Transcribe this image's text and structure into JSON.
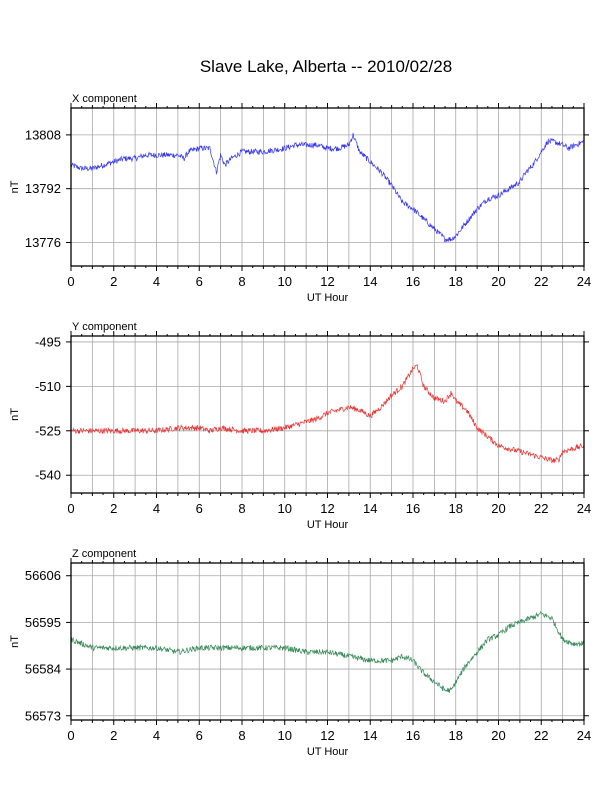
{
  "title": "Slave Lake, Alberta -- 2010/02/28",
  "chart_data": [
    {
      "type": "line",
      "panel_label": "X component",
      "xlabel": "UT Hour",
      "ylabel": "nT",
      "xlim": [
        0,
        24
      ],
      "ylim": [
        13769,
        13816
      ],
      "xticks": [
        0,
        2,
        4,
        6,
        8,
        10,
        12,
        14,
        16,
        18,
        20,
        22,
        24
      ],
      "yticks": [
        13776,
        13792,
        13808
      ],
      "grid": true,
      "color": "#3333ee",
      "series": [
        {
          "x": [
            0,
            0.5,
            1,
            1.5,
            2,
            2.5,
            3,
            3.5,
            4,
            4.5,
            5,
            5.3,
            5.5,
            6,
            6.5,
            6.8,
            7,
            7.2,
            7.5,
            8,
            9,
            10,
            10.5,
            11,
            11.5,
            12,
            12.5,
            13,
            13.2,
            13.5,
            14,
            14.5,
            15,
            15.5,
            16,
            16.5,
            17,
            17.5,
            17.8,
            18,
            18.5,
            19,
            19.5,
            20,
            20.5,
            21,
            21.3,
            21.6,
            22,
            22.3,
            22.6,
            23,
            23.3,
            23.6,
            24
          ],
          "values": [
            13799,
            13798,
            13798,
            13799,
            13800,
            13801,
            13801,
            13802,
            13802,
            13802,
            13802,
            13801,
            13803,
            13804,
            13804,
            13797,
            13802,
            13799,
            13801,
            13803,
            13803,
            13804,
            13805,
            13805,
            13805,
            13804,
            13804,
            13805,
            13808,
            13803,
            13800,
            13797,
            13793,
            13788,
            13786,
            13783,
            13780,
            13777,
            13777,
            13778,
            13782,
            13786,
            13789,
            13790,
            13792,
            13794,
            13797,
            13799,
            13803,
            13806,
            13806,
            13805,
            13804,
            13805,
            13806
          ]
        }
      ]
    },
    {
      "type": "line",
      "panel_label": "Y component",
      "xlabel": "UT Hour",
      "ylabel": "nT",
      "xlim": [
        0,
        24
      ],
      "ylim": [
        -546,
        -493
      ],
      "xticks": [
        0,
        2,
        4,
        6,
        8,
        10,
        12,
        14,
        16,
        18,
        20,
        22,
        24
      ],
      "yticks": [
        -540,
        -525,
        -510,
        -495
      ],
      "grid": true,
      "color": "#e83333",
      "series": [
        {
          "x": [
            0,
            1,
            2,
            3,
            4,
            5,
            6,
            6.5,
            7,
            8,
            9,
            10,
            11,
            11.5,
            12,
            12.5,
            13,
            13.5,
            14,
            14.5,
            15,
            15.5,
            16,
            16.2,
            16.5,
            17,
            17.5,
            17.8,
            18,
            18.5,
            19,
            19.5,
            20,
            20.5,
            21,
            21.5,
            22,
            22.5,
            22.8,
            23,
            23.5,
            24
          ],
          "values": [
            -525,
            -525,
            -525,
            -525,
            -525,
            -524,
            -524,
            -525,
            -524,
            -525,
            -525,
            -524,
            -522,
            -521,
            -519,
            -518,
            -517,
            -518,
            -520,
            -517,
            -513,
            -510,
            -504,
            -503,
            -510,
            -514,
            -515,
            -512,
            -515,
            -518,
            -524,
            -527,
            -530,
            -531,
            -532,
            -533,
            -534,
            -535,
            -535,
            -532,
            -531,
            -530
          ]
        }
      ]
    },
    {
      "type": "line",
      "panel_label": "Z component",
      "xlabel": "UT Hour",
      "ylabel": "nT",
      "xlim": [
        0,
        24
      ],
      "ylim": [
        56572,
        56609
      ],
      "xticks": [
        0,
        2,
        4,
        6,
        8,
        10,
        12,
        14,
        16,
        18,
        20,
        22,
        24
      ],
      "yticks": [
        56573,
        56584,
        56595,
        56606
      ],
      "grid": true,
      "color": "#3a8a5a",
      "series": [
        {
          "x": [
            0,
            0.5,
            1,
            2,
            3,
            4,
            5,
            6,
            7,
            8,
            9,
            10,
            11,
            12,
            13,
            14,
            14.5,
            15,
            15.5,
            16,
            16.5,
            17,
            17.5,
            17.8,
            18,
            18.5,
            19,
            19.5,
            20,
            20.5,
            21,
            21.5,
            22,
            22.5,
            23,
            23.5,
            24
          ],
          "values": [
            56591,
            56590,
            56589,
            56589,
            56589,
            56589,
            56588,
            56589,
            56589,
            56589,
            56589,
            56589,
            56588,
            56588,
            56587,
            56586,
            56586,
            56586,
            56587,
            56586,
            56583,
            56581,
            56579,
            56579,
            56581,
            56585,
            56588,
            56591,
            56592,
            56594,
            56595,
            56596,
            56597,
            56596,
            56591,
            56590,
            56590
          ]
        }
      ]
    }
  ]
}
